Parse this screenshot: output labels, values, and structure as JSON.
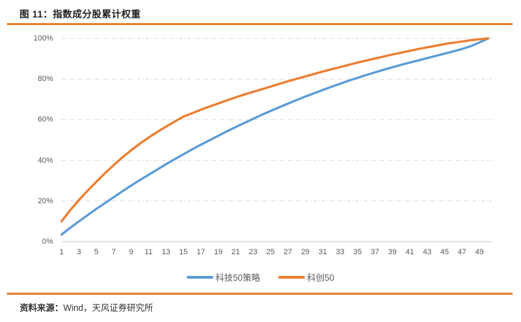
{
  "figure": {
    "title": "图 11：指数成分股累计权重",
    "source_prefix": "资料来源：",
    "source_text": "Wind，天风证券研究所",
    "accent_color": "#e8822c",
    "title_color": "#1f1f1f",
    "tick_label_color": "#595959"
  },
  "chart_data": {
    "type": "line",
    "title": "指数成分股累计权重",
    "xlabel": "",
    "ylabel": "",
    "x": [
      1,
      2,
      3,
      4,
      5,
      6,
      7,
      8,
      9,
      10,
      11,
      12,
      13,
      14,
      15,
      16,
      17,
      18,
      19,
      20,
      21,
      22,
      23,
      24,
      25,
      26,
      27,
      28,
      29,
      30,
      31,
      32,
      33,
      34,
      35,
      36,
      37,
      38,
      39,
      40,
      41,
      42,
      43,
      44,
      45,
      46,
      47,
      48,
      49,
      50
    ],
    "x_tick_labels": [
      "1",
      "3",
      "5",
      "7",
      "9",
      "11",
      "13",
      "15",
      "17",
      "19",
      "21",
      "23",
      "25",
      "27",
      "29",
      "31",
      "33",
      "35",
      "37",
      "39",
      "41",
      "43",
      "45",
      "47",
      "49"
    ],
    "x_ticks_at": [
      1,
      3,
      5,
      7,
      9,
      11,
      13,
      15,
      17,
      19,
      21,
      23,
      25,
      27,
      29,
      31,
      33,
      35,
      37,
      39,
      41,
      43,
      45,
      47,
      49
    ],
    "y_ticks": [
      0,
      20,
      40,
      60,
      80,
      100
    ],
    "y_tick_suffix": "%",
    "ylim": [
      0,
      100
    ],
    "grid": "horizontal-dashed",
    "gridline_color": "#d6d6d6",
    "baseline_color": "#c9c9c9",
    "legend_position": "bottom",
    "series": [
      {
        "name": "科技50策略",
        "color": "#5b9bd5",
        "values": [
          3.5,
          6.8,
          10.0,
          13.1,
          16.1,
          19.0,
          21.9,
          24.8,
          27.6,
          30.3,
          32.9,
          35.5,
          38.1,
          40.6,
          43.0,
          45.4,
          47.7,
          49.9,
          52.1,
          54.3,
          56.4,
          58.4,
          60.4,
          62.4,
          64.3,
          66.1,
          67.9,
          69.7,
          71.4,
          73.0,
          74.6,
          76.2,
          77.7,
          79.2,
          80.6,
          82.0,
          83.3,
          84.6,
          85.8,
          87.0,
          88.1,
          89.2,
          90.3,
          91.4,
          92.5,
          93.6,
          94.8,
          96.2,
          98.0,
          100.0
        ]
      },
      {
        "name": "科创50",
        "color": "#ed7d31",
        "values": [
          10.0,
          15.5,
          20.5,
          25.1,
          29.5,
          33.7,
          37.7,
          41.5,
          45.0,
          48.2,
          51.2,
          54.0,
          56.6,
          59.1,
          61.5,
          63.2,
          64.9,
          66.5,
          68.0,
          69.5,
          71.0,
          72.4,
          73.7,
          75.0,
          76.3,
          77.6,
          78.9,
          80.1,
          81.3,
          82.5,
          83.7,
          84.8,
          85.9,
          87.0,
          88.1,
          89.1,
          90.1,
          91.1,
          92.1,
          93.0,
          93.9,
          94.8,
          95.6,
          96.4,
          97.2,
          97.9,
          98.5,
          99.1,
          99.6,
          100.0
        ]
      }
    ]
  }
}
